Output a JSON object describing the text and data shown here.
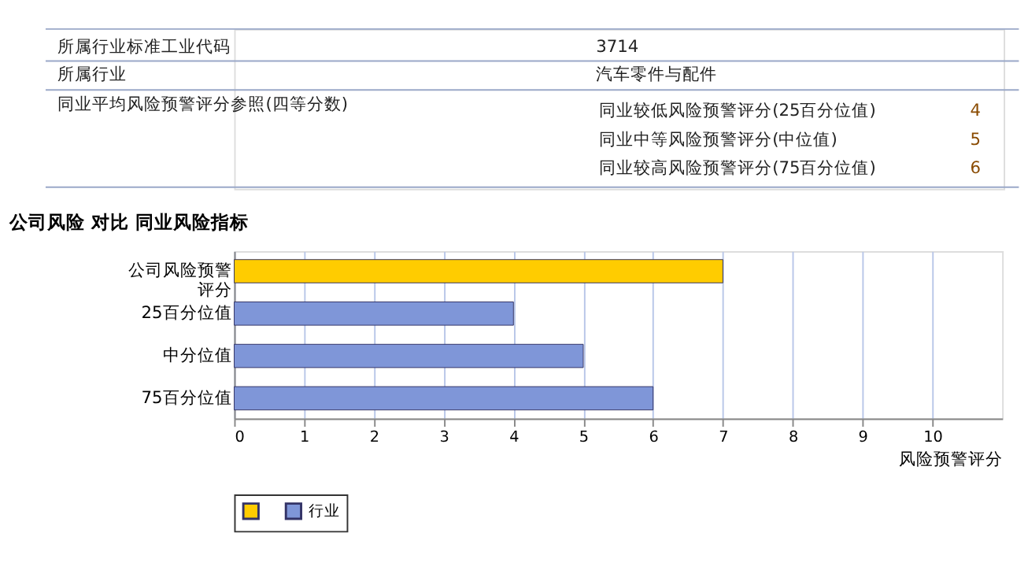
{
  "chart_data": {
    "type": "bar",
    "orientation": "horizontal",
    "title": "公司风险  对比  同业风险指标",
    "xlabel": "风险预警评分",
    "categories": [
      "公司风险预警评分",
      "25百分位值",
      "中分位值",
      "75百分位值"
    ],
    "series": [
      {
        "color": "#ffcc00",
        "values": [
          7,
          null,
          null,
          null
        ]
      },
      {
        "name": "行业",
        "color": "#7f96d8",
        "values": [
          null,
          4,
          5,
          6
        ]
      }
    ],
    "xlim": [
      0,
      11
    ],
    "xticks": [
      0,
      1,
      2,
      3,
      4,
      5,
      6,
      7,
      8,
      9,
      10
    ],
    "grid": "x",
    "legend": "bottom",
    "annotations": [
      "所属行业标准工业代码",
      "3714",
      "所属行业",
      "汽车零件与配件",
      "同业平均风险预警评分参照(四等分数)",
      "同业较低风险预警评分(25百分位值)",
      "4",
      "同业中等风险预警评分(中位值)",
      "5",
      "同业较高风险预警评分(75百分位值)",
      "6"
    ]
  }
}
